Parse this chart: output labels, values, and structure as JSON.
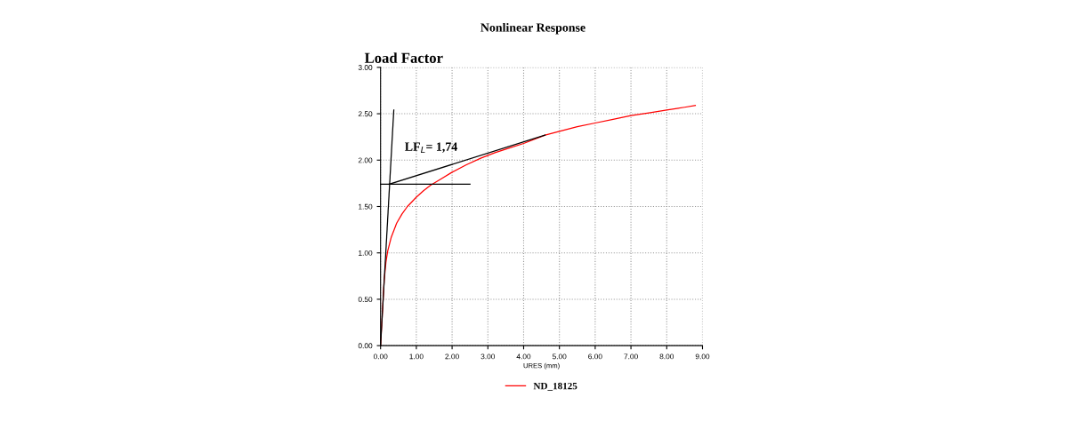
{
  "chart_data": {
    "type": "line",
    "title": "Nonlinear Response",
    "ylabel": "Load Factor",
    "xlabel": "URES (mm)",
    "xlim": [
      0,
      9
    ],
    "ylim": [
      0,
      3
    ],
    "xticks": [
      {
        "value": 0,
        "label": "0.00"
      },
      {
        "value": 1,
        "label": "1.00"
      },
      {
        "value": 2,
        "label": "2.00"
      },
      {
        "value": 3,
        "label": "3.00"
      },
      {
        "value": 4,
        "label": "4.00"
      },
      {
        "value": 5,
        "label": "5.00"
      },
      {
        "value": 6,
        "label": "6.00"
      },
      {
        "value": 7,
        "label": "7.00"
      },
      {
        "value": 8,
        "label": "8.00"
      },
      {
        "value": 9,
        "label": "9.00"
      }
    ],
    "yticks": [
      {
        "value": 0,
        "label": "0.00"
      },
      {
        "value": 0.5,
        "label": "0.50"
      },
      {
        "value": 1,
        "label": "1.00"
      },
      {
        "value": 1.5,
        "label": "1.50"
      },
      {
        "value": 2,
        "label": "2.00"
      },
      {
        "value": 2.5,
        "label": "2.50"
      },
      {
        "value": 3,
        "label": "3.00"
      }
    ],
    "grid": true,
    "legend": "bottom",
    "series": [
      {
        "name": "ND_18125",
        "color": "#ff0000",
        "x": [
          0,
          0.05,
          0.1,
          0.15,
          0.2,
          0.3,
          0.45,
          0.6,
          0.75,
          1.0,
          1.2,
          1.4,
          1.7,
          2.0,
          2.4,
          2.8,
          3.2,
          3.6,
          4.0,
          4.6,
          5.0,
          5.5,
          6.0,
          6.5,
          7.0,
          7.5,
          8.0,
          8.5,
          8.8
        ],
        "values": [
          0,
          0.35,
          0.7,
          0.9,
          1.02,
          1.17,
          1.32,
          1.42,
          1.5,
          1.6,
          1.67,
          1.73,
          1.8,
          1.87,
          1.95,
          2.02,
          2.08,
          2.13,
          2.18,
          2.27,
          2.31,
          2.36,
          2.4,
          2.44,
          2.48,
          2.51,
          2.54,
          2.57,
          2.59
        ]
      },
      {
        "color": "#000000",
        "x": [
          0,
          0.37
        ],
        "values": [
          0,
          2.54
        ]
      },
      {
        "color": "#000000",
        "x": [
          0,
          2.5
        ],
        "values": [
          1.74,
          1.74
        ]
      },
      {
        "color": "#000000",
        "x": [
          0.24,
          4.6
        ],
        "values": [
          1.74,
          2.27
        ]
      }
    ],
    "annotations": [
      "LF$_{L}$= 1,74"
    ]
  }
}
